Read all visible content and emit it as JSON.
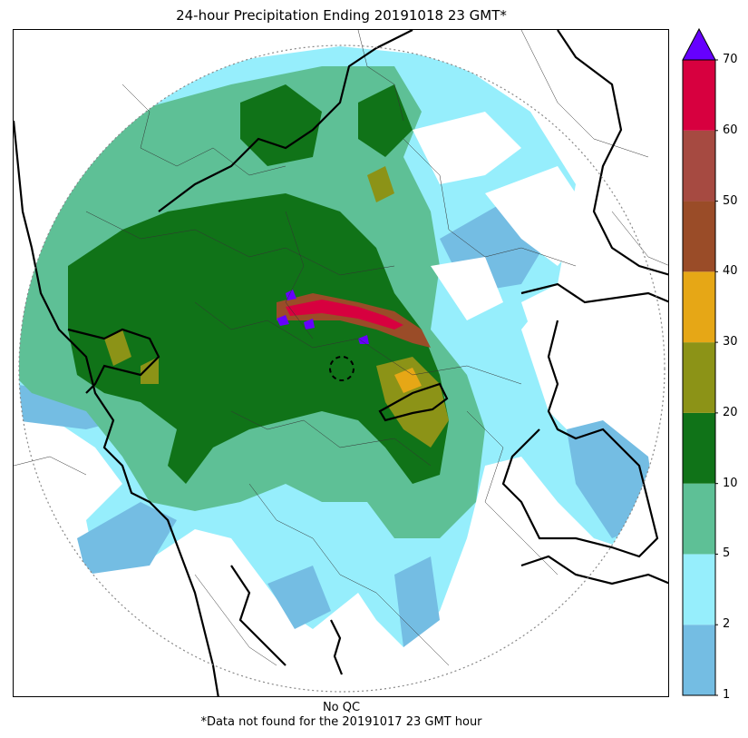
{
  "title": "24-hour Precipitation Ending 20191018 23 GMT*",
  "footer": {
    "qc_note": "No QC",
    "missing_note": "*Data not found for the 20191017 23 GMT hour"
  },
  "colorbar": {
    "ticks": [
      "1",
      "2",
      "5",
      "10",
      "20",
      "30",
      "40",
      "50",
      "60",
      "70"
    ],
    "bins": [
      {
        "from": 1,
        "to": 2,
        "color": "#74bde3"
      },
      {
        "from": 2,
        "to": 5,
        "color": "#96eefc"
      },
      {
        "from": 5,
        "to": 10,
        "color": "#5ec096"
      },
      {
        "from": 10,
        "to": 20,
        "color": "#107318"
      },
      {
        "from": 20,
        "to": 30,
        "color": "#8c9317"
      },
      {
        "from": 30,
        "to": 40,
        "color": "#e6a716"
      },
      {
        "from": 40,
        "to": 50,
        "color": "#9a4c28"
      },
      {
        "from": 50,
        "to": 60,
        "color": "#a64a41"
      },
      {
        "from": 60,
        "to": 70,
        "color": "#d7003f"
      }
    ],
    "overflow_color": "#6600ff",
    "extend": "max"
  },
  "map": {
    "radar_range_ring": "dotted",
    "radar_site_marker": "dashed-circle"
  }
}
